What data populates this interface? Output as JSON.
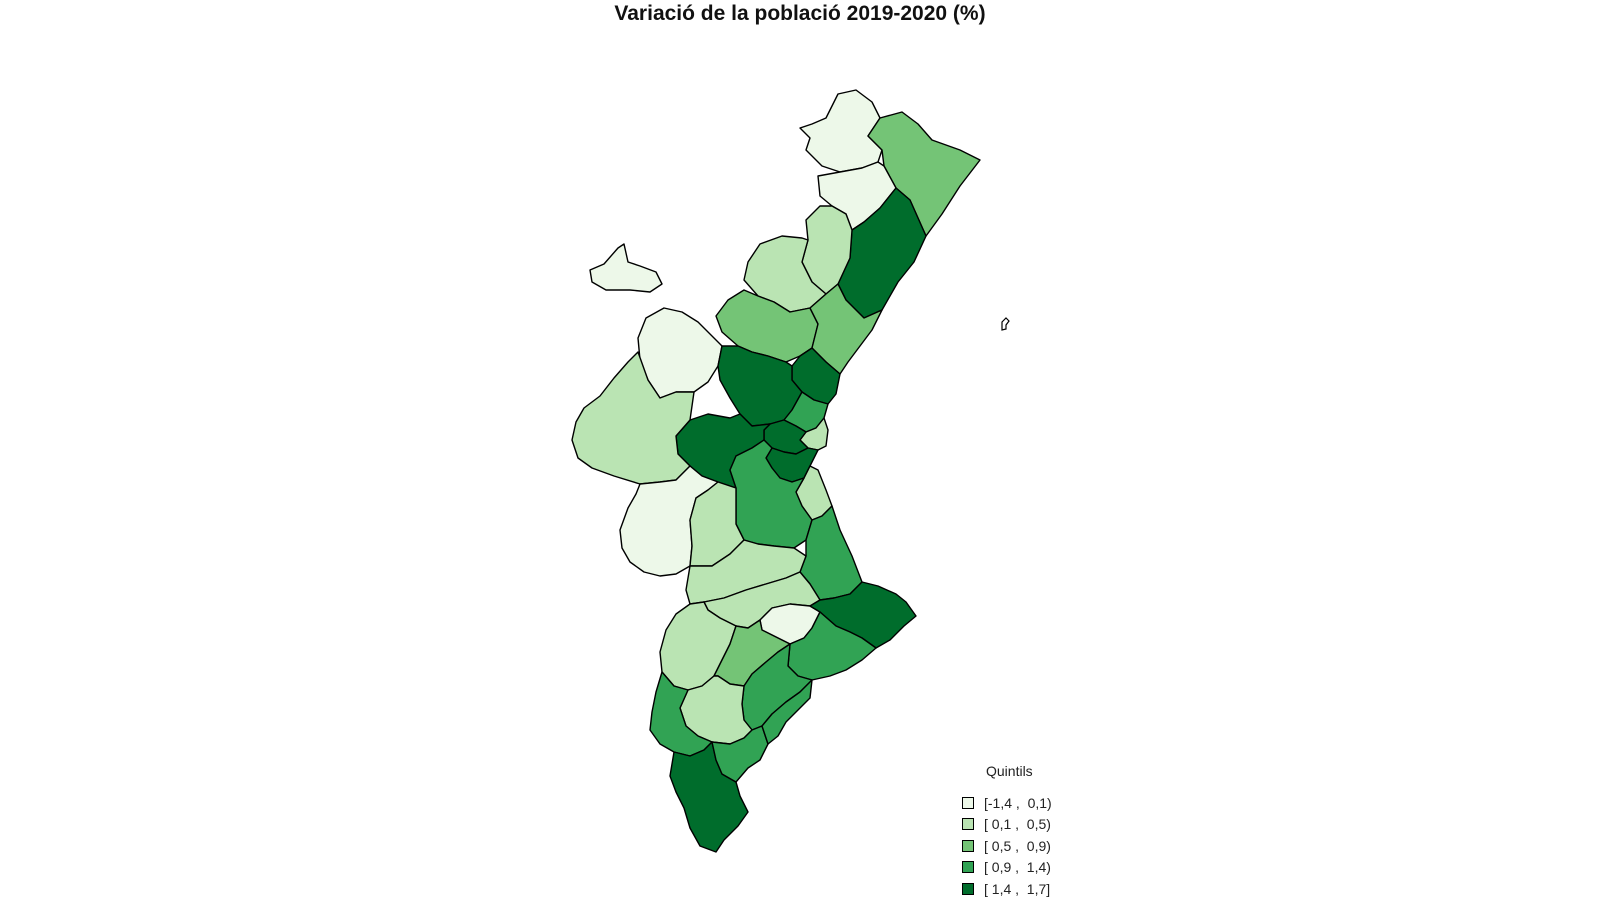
{
  "title": "Variació de la població 2019-2020 (%)",
  "legend": {
    "title": "Quintils",
    "items": [
      {
        "label": "[-1,4 ,  0,1)",
        "color": "#edf8e9"
      },
      {
        "label": "[ 0,1 ,  0,5)",
        "color": "#bae4b3"
      },
      {
        "label": "[ 0,5 ,  0,9)",
        "color": "#74c476"
      },
      {
        "label": "[ 0,9 ,  1,4)",
        "color": "#31a354"
      },
      {
        "label": "[ 1,4 ,  1,7]",
        "color": "#006d2c"
      }
    ]
  },
  "regions": [
    {
      "quintile": 0
    },
    {
      "quintile": 2
    },
    {
      "quintile": 0
    },
    {
      "quintile": 4
    },
    {
      "quintile": 1
    },
    {
      "quintile": 1
    },
    {
      "quintile": 0
    },
    {
      "quintile": 2
    },
    {
      "quintile": 2
    },
    {
      "quintile": 0
    },
    {
      "quintile": 4
    },
    {
      "quintile": 4
    },
    {
      "quintile": 3
    },
    {
      "quintile": 1
    },
    {
      "quintile": 4
    },
    {
      "quintile": 4
    },
    {
      "quintile": 1
    },
    {
      "quintile": 4
    },
    {
      "quintile": 0
    },
    {
      "quintile": 1
    },
    {
      "quintile": 3
    },
    {
      "quintile": 1
    },
    {
      "quintile": 3
    },
    {
      "quintile": 1
    },
    {
      "quintile": 1
    },
    {
      "quintile": 0
    },
    {
      "quintile": 4
    },
    {
      "quintile": 1
    },
    {
      "quintile": 2
    },
    {
      "quintile": 3
    },
    {
      "quintile": 3
    },
    {
      "quintile": 1
    },
    {
      "quintile": 3
    },
    {
      "quintile": 4
    },
    {
      "quintile": 3
    },
    {
      "quintile": 3
    }
  ]
}
